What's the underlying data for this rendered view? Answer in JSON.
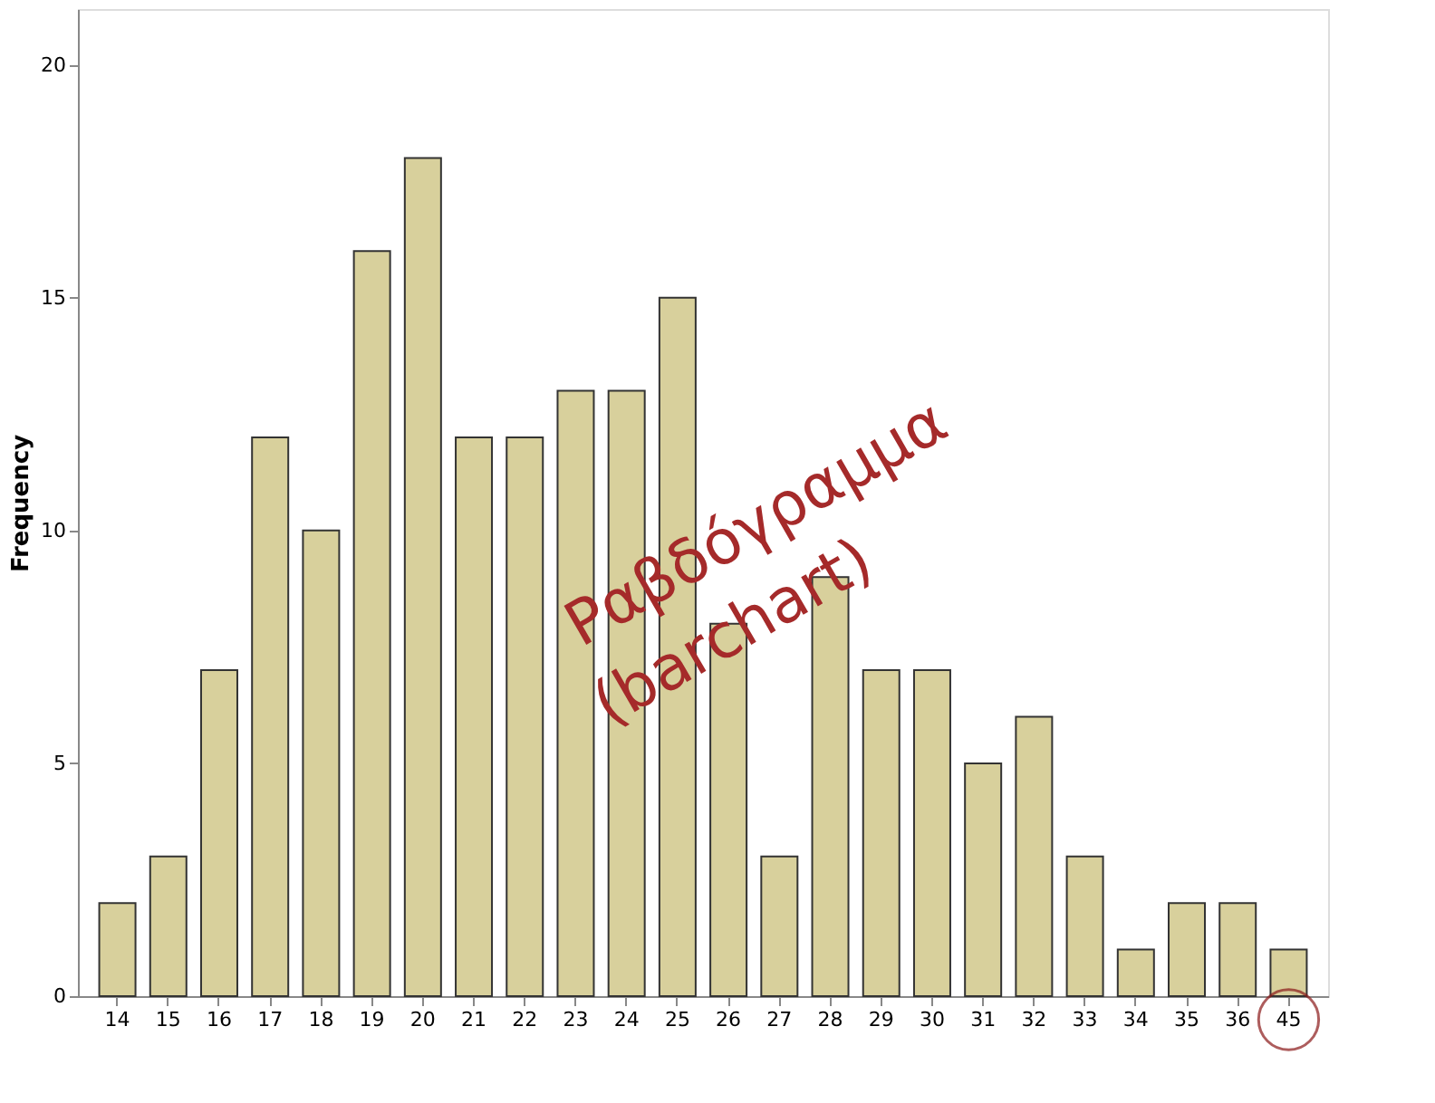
{
  "chart_data": {
    "type": "bar",
    "ylabel": "Frequency",
    "categories": [
      "14",
      "15",
      "16",
      "17",
      "18",
      "19",
      "20",
      "21",
      "22",
      "23",
      "24",
      "25",
      "26",
      "27",
      "28",
      "29",
      "30",
      "31",
      "32",
      "33",
      "34",
      "35",
      "36",
      "45"
    ],
    "values": [
      2,
      3,
      7,
      12,
      10,
      16,
      18,
      12,
      12,
      13,
      13,
      15,
      8,
      3,
      9,
      7,
      7,
      5,
      6,
      3,
      1,
      2,
      2,
      1
    ],
    "color": "#d8d09c",
    "ylim": [
      0,
      21.2
    ],
    "yticks": [
      0,
      5,
      10,
      15,
      20
    ],
    "grid": false,
    "annotations": [
      "Ραβδόγραμμα",
      "(barchart)"
    ]
  }
}
